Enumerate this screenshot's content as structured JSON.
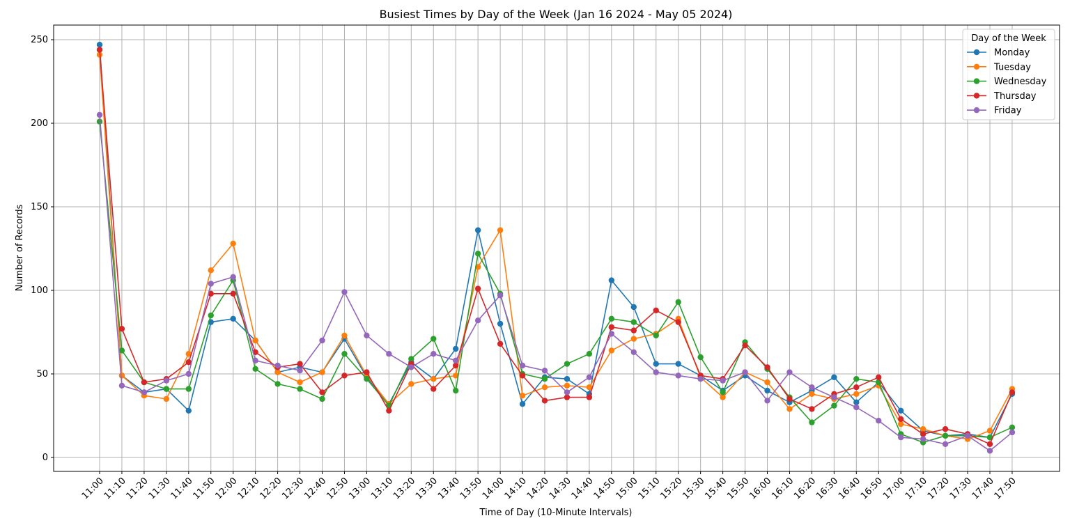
{
  "chart_data": {
    "type": "line",
    "title": "Busiest Times by Day of the Week (Jan 16 2024 - May 05 2024)",
    "xlabel": "Time of Day (10-Minute Intervals)",
    "ylabel": "Number of Records",
    "ylim": [
      -8,
      260
    ],
    "yticks": [
      0,
      50,
      100,
      150,
      200,
      250
    ],
    "grid": true,
    "legend": {
      "title": "Day of the Week",
      "placement": "top-right"
    },
    "categories": [
      "11:00",
      "11:10",
      "11:20",
      "11:30",
      "11:40",
      "11:50",
      "12:00",
      "12:10",
      "12:20",
      "12:30",
      "12:40",
      "12:50",
      "13:00",
      "13:10",
      "13:20",
      "13:30",
      "13:40",
      "13:50",
      "14:00",
      "14:10",
      "14:20",
      "14:30",
      "14:40",
      "14:50",
      "15:00",
      "15:10",
      "15:20",
      "15:30",
      "15:40",
      "15:50",
      "16:00",
      "16:10",
      "16:20",
      "16:30",
      "16:40",
      "16:50",
      "17:00",
      "17:10",
      "17:20",
      "17:30",
      "17:40",
      "17:50"
    ],
    "series": [
      {
        "name": "Monday",
        "color": "#1f77b4",
        "values": [
          247,
          49,
          39,
          41,
          28,
          81,
          83,
          70,
          51,
          54,
          51,
          71,
          48,
          32,
          57,
          47,
          65,
          136,
          80,
          32,
          48,
          47,
          38,
          106,
          90,
          56,
          56,
          49,
          40,
          49,
          40,
          33,
          40,
          48,
          33,
          45,
          28,
          16,
          13,
          14,
          12,
          38
        ]
      },
      {
        "name": "Tuesday",
        "color": "#ff7f0e",
        "values": [
          241,
          49,
          37,
          35,
          62,
          112,
          128,
          70,
          51,
          45,
          51,
          73,
          49,
          32,
          44,
          47,
          49,
          114,
          136,
          37,
          42,
          43,
          42,
          64,
          71,
          74,
          83,
          48,
          36,
          51,
          45,
          29,
          38,
          35,
          38,
          43,
          20,
          17,
          13,
          11,
          16,
          41
        ]
      },
      {
        "name": "Wednesday",
        "color": "#2ca02c",
        "values": [
          201,
          64,
          45,
          41,
          41,
          85,
          106,
          53,
          44,
          41,
          35,
          62,
          47,
          31,
          59,
          71,
          40,
          122,
          98,
          50,
          47,
          56,
          62,
          83,
          81,
          73,
          93,
          60,
          39,
          69,
          53,
          36,
          21,
          31,
          47,
          45,
          14,
          9,
          13,
          13,
          12,
          18
        ]
      },
      {
        "name": "Thursday",
        "color": "#d62728",
        "values": [
          244,
          77,
          45,
          47,
          57,
          98,
          98,
          63,
          54,
          56,
          39,
          49,
          51,
          28,
          56,
          41,
          55,
          101,
          68,
          49,
          34,
          36,
          36,
          78,
          76,
          88,
          81,
          49,
          47,
          67,
          54,
          35,
          29,
          38,
          42,
          48,
          23,
          14,
          17,
          14,
          8,
          39
        ]
      },
      {
        "name": "Friday",
        "color": "#9467bd",
        "values": [
          205,
          43,
          39,
          46,
          50,
          104,
          108,
          58,
          55,
          52,
          70,
          99,
          73,
          62,
          54,
          62,
          58,
          82,
          97,
          55,
          52,
          39,
          48,
          74,
          63,
          51,
          49,
          47,
          46,
          51,
          34,
          51,
          42,
          36,
          30,
          22,
          12,
          11,
          8,
          13,
          4,
          15
        ]
      }
    ]
  }
}
